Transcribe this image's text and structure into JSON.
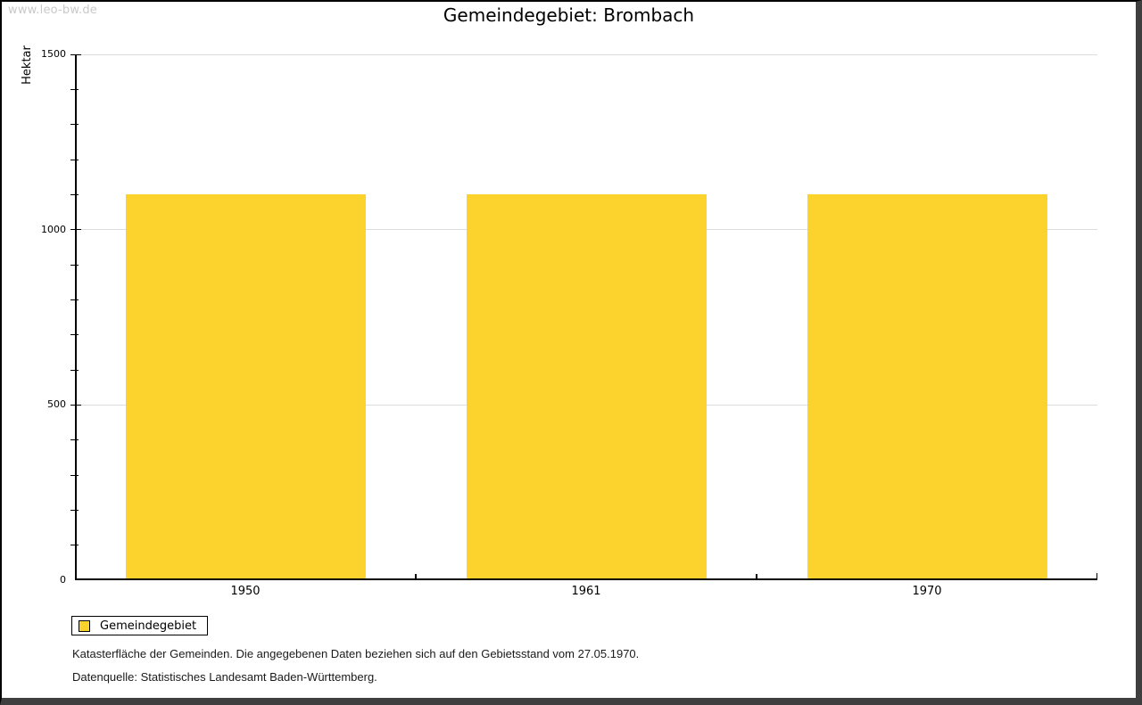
{
  "watermark": "www.leo-bw.de",
  "chart_data": {
    "type": "bar",
    "title": "Gemeindegebiet: Brombach",
    "xlabel": "",
    "ylabel": "Hektar",
    "categories": [
      "1950",
      "1961",
      "1970"
    ],
    "series": [
      {
        "name": "Gemeindegebiet",
        "values": [
          1100,
          1100,
          1100
        ]
      }
    ],
    "ylim": [
      0,
      1500
    ],
    "yticks": [
      0,
      500,
      1000,
      1500
    ],
    "y_minor_step": 100,
    "grid": true,
    "legend_position": "bottom-left",
    "bar_color": "#FCD32D"
  },
  "colors": {
    "bar": "#FCD32D",
    "grid": "#DCDCDC",
    "axis": "#000000",
    "watermark": "#C9C9C9",
    "frame_shadow": "#3F3F3F"
  },
  "footnotes": [
    "Katasterfläche der Gemeinden. Die angegebenen Daten beziehen sich auf den Gebietsstand vom 27.05.1970.",
    "Datenquelle: Statistisches Landesamt Baden-Württemberg."
  ]
}
